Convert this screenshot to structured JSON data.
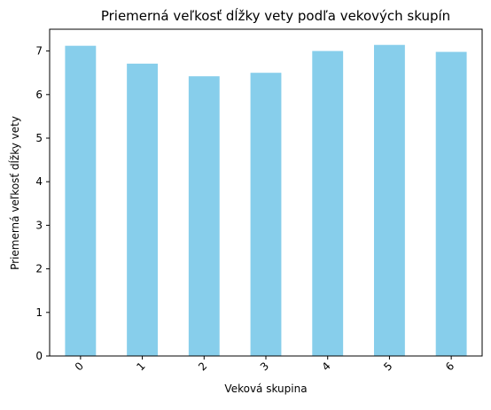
{
  "chart_data": {
    "type": "bar",
    "title": "Priemerná veľkosť dĺžky vety podľa vekových skupín",
    "xlabel": "Veková skupina",
    "ylabel": "Priemerná veľkosť dĺžky vety",
    "categories": [
      "0",
      "1",
      "2",
      "3",
      "4",
      "5",
      "6"
    ],
    "values": [
      7.12,
      6.71,
      6.42,
      6.5,
      7.0,
      7.14,
      6.98
    ],
    "ylim": [
      0,
      7.5
    ],
    "yticks": [
      "0",
      "1",
      "2",
      "3",
      "4",
      "5",
      "6",
      "7"
    ],
    "xtick_rotation": 45,
    "grid": false,
    "legend": "none",
    "bar_color": "#87ceeb",
    "axis_color": "#000000"
  }
}
